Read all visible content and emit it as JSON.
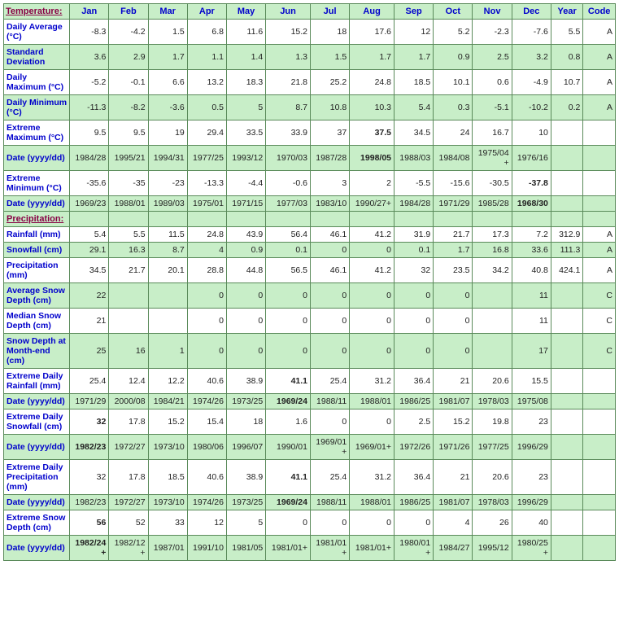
{
  "table": {
    "colors": {
      "header_bg": "#c8eec8",
      "shaded_bg": "#c8eec8",
      "plain_bg": "#ffffff",
      "border": "#5a8a5a",
      "link_text": "#0000cc",
      "section_text": "#880044"
    },
    "fontsize": {
      "header": 11,
      "cell": 10.5
    },
    "columns": [
      "Jan",
      "Feb",
      "Mar",
      "Apr",
      "May",
      "Jun",
      "Jul",
      "Aug",
      "Sep",
      "Oct",
      "Nov",
      "Dec",
      "Year",
      "Code"
    ],
    "sections": [
      {
        "title": "Temperature:",
        "row_style": "plain"
      },
      {
        "title": "Precipitation:",
        "row_style": "shaded"
      }
    ],
    "rows": [
      {
        "section": 0,
        "shaded": false,
        "label": "Daily Average (°C)",
        "cells": [
          "-8.3",
          "-4.2",
          "1.5",
          "6.8",
          "11.6",
          "15.2",
          "18",
          "17.6",
          "12",
          "5.2",
          "-2.3",
          "-7.6",
          "5.5",
          "A"
        ]
      },
      {
        "section": 0,
        "shaded": true,
        "label": "Standard Deviation",
        "cells": [
          "3.6",
          "2.9",
          "1.7",
          "1.1",
          "1.4",
          "1.3",
          "1.5",
          "1.7",
          "1.7",
          "0.9",
          "2.5",
          "3.2",
          "0.8",
          "A"
        ]
      },
      {
        "section": 0,
        "shaded": false,
        "label": "Daily Maximum (°C)",
        "cells": [
          "-5.2",
          "-0.1",
          "6.6",
          "13.2",
          "18.3",
          "21.8",
          "25.2",
          "24.8",
          "18.5",
          "10.1",
          "0.6",
          "-4.9",
          "10.7",
          "A"
        ]
      },
      {
        "section": 0,
        "shaded": true,
        "label": "Daily Minimum (°C)",
        "cells": [
          "-11.3",
          "-8.2",
          "-3.6",
          "0.5",
          "5",
          "8.7",
          "10.8",
          "10.3",
          "5.4",
          "0.3",
          "-5.1",
          "-10.2",
          "0.2",
          "A"
        ]
      },
      {
        "section": 0,
        "shaded": false,
        "label": "Extreme Maximum (°C)",
        "cells": [
          "9.5",
          "9.5",
          "19",
          "29.4",
          "33.5",
          "33.9",
          "37",
          "37.5",
          "34.5",
          "24",
          "16.7",
          "10",
          "",
          ""
        ],
        "bold_idx": [
          7
        ]
      },
      {
        "section": 0,
        "shaded": true,
        "label": "Date (yyyy/dd)",
        "cells": [
          "1984/28",
          "1995/21",
          "1994/31",
          "1977/25",
          "1993/12",
          "1970/03",
          "1987/28",
          "1998/05",
          "1988/03",
          "1984/08",
          "1975/04+",
          "1976/16",
          "",
          ""
        ],
        "bold_idx": [
          7
        ]
      },
      {
        "section": 0,
        "shaded": false,
        "label": "Extreme Minimum (°C)",
        "cells": [
          "-35.6",
          "-35",
          "-23",
          "-13.3",
          "-4.4",
          "-0.6",
          "3",
          "2",
          "-5.5",
          "-15.6",
          "-30.5",
          "-37.8",
          "",
          ""
        ],
        "bold_idx": [
          11
        ]
      },
      {
        "section": 0,
        "shaded": true,
        "label": "Date (yyyy/dd)",
        "cells": [
          "1969/23",
          "1988/01",
          "1989/03",
          "1975/01",
          "1971/15",
          "1977/03",
          "1983/10",
          "1990/27+",
          "1984/28",
          "1971/29",
          "1985/28",
          "1968/30",
          "",
          ""
        ],
        "bold_idx": [
          11
        ]
      },
      {
        "section": 1,
        "shaded": false,
        "label": "Rainfall (mm)",
        "cells": [
          "5.4",
          "5.5",
          "11.5",
          "24.8",
          "43.9",
          "56.4",
          "46.1",
          "41.2",
          "31.9",
          "21.7",
          "17.3",
          "7.2",
          "312.9",
          "A"
        ]
      },
      {
        "section": 1,
        "shaded": true,
        "label": "Snowfall (cm)",
        "cells": [
          "29.1",
          "16.3",
          "8.7",
          "4",
          "0.9",
          "0.1",
          "0",
          "0",
          "0.1",
          "1.7",
          "16.8",
          "33.6",
          "111.3",
          "A"
        ]
      },
      {
        "section": 1,
        "shaded": false,
        "label": "Precipitation (mm)",
        "cells": [
          "34.5",
          "21.7",
          "20.1",
          "28.8",
          "44.8",
          "56.5",
          "46.1",
          "41.2",
          "32",
          "23.5",
          "34.2",
          "40.8",
          "424.1",
          "A"
        ]
      },
      {
        "section": 1,
        "shaded": true,
        "label": "Average Snow Depth (cm)",
        "cells": [
          "22",
          "",
          "",
          "0",
          "0",
          "0",
          "0",
          "0",
          "0",
          "0",
          "",
          "11",
          "",
          "C"
        ]
      },
      {
        "section": 1,
        "shaded": false,
        "label": "Median Snow Depth (cm)",
        "cells": [
          "21",
          "",
          "",
          "0",
          "0",
          "0",
          "0",
          "0",
          "0",
          "0",
          "",
          "11",
          "",
          "C"
        ]
      },
      {
        "section": 1,
        "shaded": true,
        "label": "Snow Depth at Month-end (cm)",
        "cells": [
          "25",
          "16",
          "1",
          "0",
          "0",
          "0",
          "0",
          "0",
          "0",
          "0",
          "",
          "17",
          "",
          "C"
        ]
      },
      {
        "section": 1,
        "shaded": false,
        "label": "Extreme Daily Rainfall (mm)",
        "cells": [
          "25.4",
          "12.4",
          "12.2",
          "40.6",
          "38.9",
          "41.1",
          "25.4",
          "31.2",
          "36.4",
          "21",
          "20.6",
          "15.5",
          "",
          ""
        ],
        "bold_idx": [
          5
        ]
      },
      {
        "section": 1,
        "shaded": true,
        "label": "Date (yyyy/dd)",
        "cells": [
          "1971/29",
          "2000/08",
          "1984/21",
          "1974/26",
          "1973/25",
          "1969/24",
          "1988/11",
          "1988/01",
          "1986/25",
          "1981/07",
          "1978/03",
          "1975/08",
          "",
          ""
        ],
        "bold_idx": [
          5
        ]
      },
      {
        "section": 1,
        "shaded": false,
        "label": "Extreme Daily Snowfall (cm)",
        "cells": [
          "32",
          "17.8",
          "15.2",
          "15.4",
          "18",
          "1.6",
          "0",
          "0",
          "2.5",
          "15.2",
          "19.8",
          "23",
          "",
          ""
        ],
        "bold_idx": [
          0
        ]
      },
      {
        "section": 1,
        "shaded": true,
        "label": "Date (yyyy/dd)",
        "cells": [
          "1982/23",
          "1972/27",
          "1973/10",
          "1980/06",
          "1996/07",
          "1990/01",
          "1969/01+",
          "1969/01+",
          "1972/26",
          "1971/26",
          "1977/25",
          "1996/29",
          "",
          ""
        ],
        "bold_idx": [
          0
        ]
      },
      {
        "section": 1,
        "shaded": false,
        "label": "Extreme Daily Precipitation (mm)",
        "cells": [
          "32",
          "17.8",
          "18.5",
          "40.6",
          "38.9",
          "41.1",
          "25.4",
          "31.2",
          "36.4",
          "21",
          "20.6",
          "23",
          "",
          ""
        ],
        "bold_idx": [
          5
        ]
      },
      {
        "section": 1,
        "shaded": true,
        "label": "Date (yyyy/dd)",
        "cells": [
          "1982/23",
          "1972/27",
          "1973/10",
          "1974/26",
          "1973/25",
          "1969/24",
          "1988/11",
          "1988/01",
          "1986/25",
          "1981/07",
          "1978/03",
          "1996/29",
          "",
          ""
        ],
        "bold_idx": [
          5
        ]
      },
      {
        "section": 1,
        "shaded": false,
        "label": "Extreme Snow Depth (cm)",
        "cells": [
          "56",
          "52",
          "33",
          "12",
          "5",
          "0",
          "0",
          "0",
          "0",
          "4",
          "26",
          "40",
          "",
          ""
        ],
        "bold_idx": [
          0
        ]
      },
      {
        "section": 1,
        "shaded": true,
        "label": "Date (yyyy/dd)",
        "cells": [
          "1982/24+",
          "1982/12+",
          "1987/01",
          "1991/10",
          "1981/05",
          "1981/01+",
          "1981/01+",
          "1981/01+",
          "1980/01+",
          "1984/27",
          "1995/12",
          "1980/25+",
          "",
          ""
        ],
        "bold_idx": [
          0
        ]
      }
    ]
  }
}
